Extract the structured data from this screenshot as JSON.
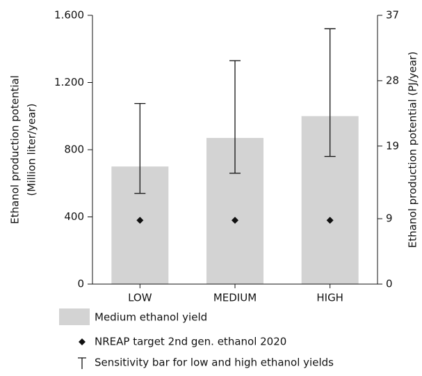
{
  "chart_data": {
    "type": "bar",
    "categories": [
      "LOW",
      "MEDIUM",
      "HIGH"
    ],
    "series": [
      {
        "name": "Medium ethanol yield",
        "color": "#d3d3d3",
        "values": [
          700,
          870,
          1000
        ]
      },
      {
        "name": "NREAP target 2nd gen. ethanol 2020",
        "color": "#111111",
        "values": [
          380,
          380,
          380
        ]
      }
    ],
    "error_bars": {
      "name": "Sensitivity bar for low and high ethanol yields",
      "low": [
        540,
        660,
        760
      ],
      "high": [
        1075,
        1330,
        1520
      ],
      "color": "#111111"
    },
    "ylabel": [
      "Ethanol production potential",
      "(Million liter/year)"
    ],
    "y2label": "Ethanol production potential (PJ/year)",
    "ylim": [
      0,
      1600
    ],
    "yticks": [
      0,
      400,
      800,
      {
        "value": 1200,
        "label": "1.200"
      },
      {
        "value": 1600,
        "label": "1.600"
      }
    ],
    "y2lim": [
      0,
      37
    ],
    "y2ticks": [
      0,
      9,
      19,
      28,
      37
    ]
  }
}
